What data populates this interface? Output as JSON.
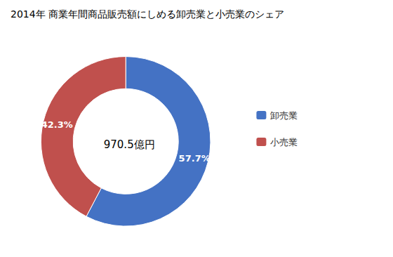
{
  "chart_data": {
    "type": "pie",
    "title": "2014年 商業年間商品販売額にしめる卸売業と小売業のシェア",
    "categories": [
      "卸売業",
      "小売業"
    ],
    "values": [
      57.7,
      42.3
    ],
    "value_labels": [
      "57.7%",
      "42.3%"
    ],
    "colors": [
      "#4472C4",
      "#C0504D"
    ],
    "annotations": [
      "970.5億円"
    ],
    "data_labels": true,
    "legend": "right"
  }
}
